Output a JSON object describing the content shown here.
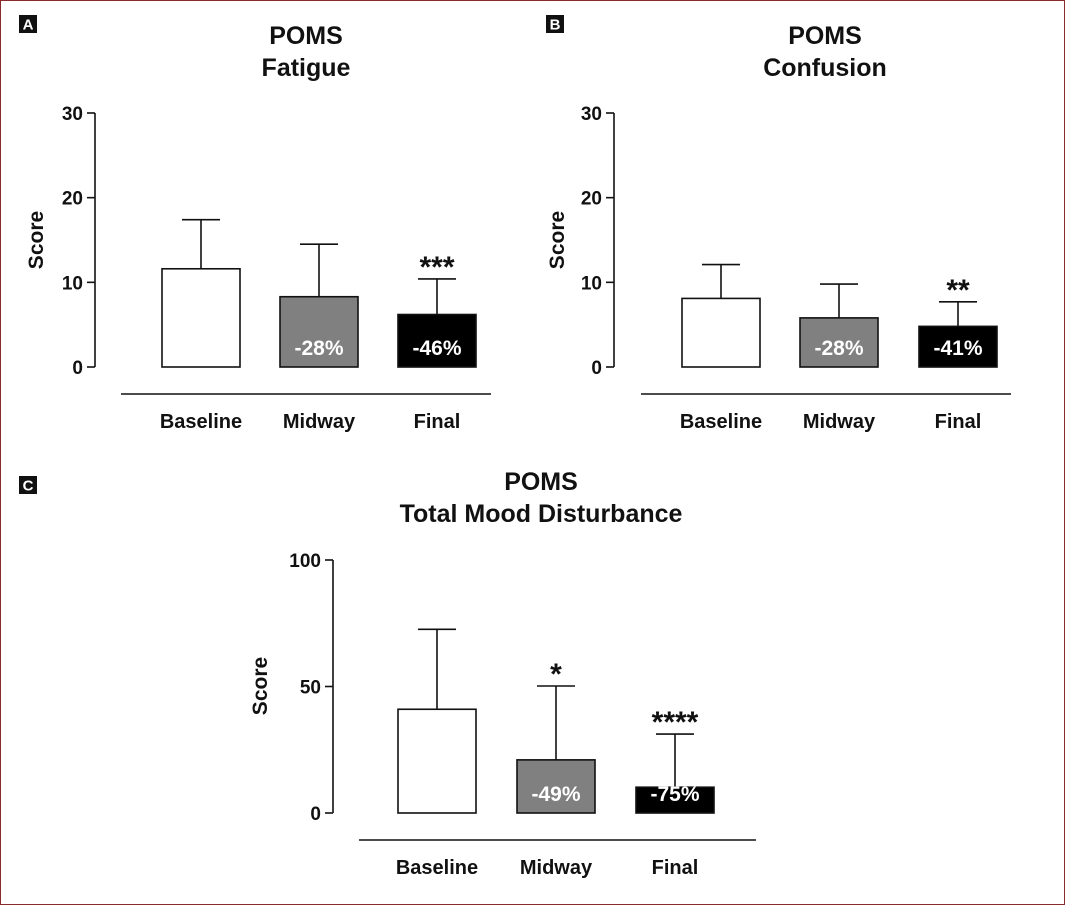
{
  "chart_data": [
    {
      "panel": "A",
      "type": "bar",
      "title": [
        "POMS",
        "Fatigue"
      ],
      "ylabel": "Score",
      "xlabel": "",
      "ylim": [
        0,
        30
      ],
      "yticks": [
        0,
        10,
        20,
        30
      ],
      "categories": [
        "Baseline",
        "Midway",
        "Final"
      ],
      "values": [
        11.6,
        8.3,
        6.2
      ],
      "error_upper": [
        17.4,
        14.5,
        10.4
      ],
      "colors": [
        "#ffffff",
        "#808080",
        "#000000"
      ],
      "bar_labels": [
        "",
        "-28%",
        "-46%"
      ],
      "significance": [
        "",
        "",
        "***"
      ]
    },
    {
      "panel": "B",
      "type": "bar",
      "title": [
        "POMS",
        "Confusion"
      ],
      "ylabel": "Score",
      "xlabel": "",
      "ylim": [
        0,
        30
      ],
      "yticks": [
        0,
        10,
        20,
        30
      ],
      "categories": [
        "Baseline",
        "Midway",
        "Final"
      ],
      "values": [
        8.1,
        5.8,
        4.8
      ],
      "error_upper": [
        12.1,
        9.8,
        7.7
      ],
      "colors": [
        "#ffffff",
        "#808080",
        "#000000"
      ],
      "bar_labels": [
        "",
        "-28%",
        "-41%"
      ],
      "significance": [
        "",
        "",
        "**"
      ]
    },
    {
      "panel": "C",
      "type": "bar",
      "title": [
        "POMS",
        "Total Mood Disturbance"
      ],
      "ylabel": "Score",
      "xlabel": "",
      "ylim": [
        0,
        100
      ],
      "yticks": [
        0,
        50,
        100
      ],
      "categories": [
        "Baseline",
        "Midway",
        "Final"
      ],
      "values": [
        41,
        21,
        10.2
      ],
      "error_upper": [
        72.6,
        50.2,
        31.2
      ],
      "colors": [
        "#ffffff",
        "#808080",
        "#000000"
      ],
      "bar_labels": [
        "",
        "-49%",
        "-75%"
      ],
      "significance": [
        "",
        "*",
        "****"
      ]
    }
  ]
}
